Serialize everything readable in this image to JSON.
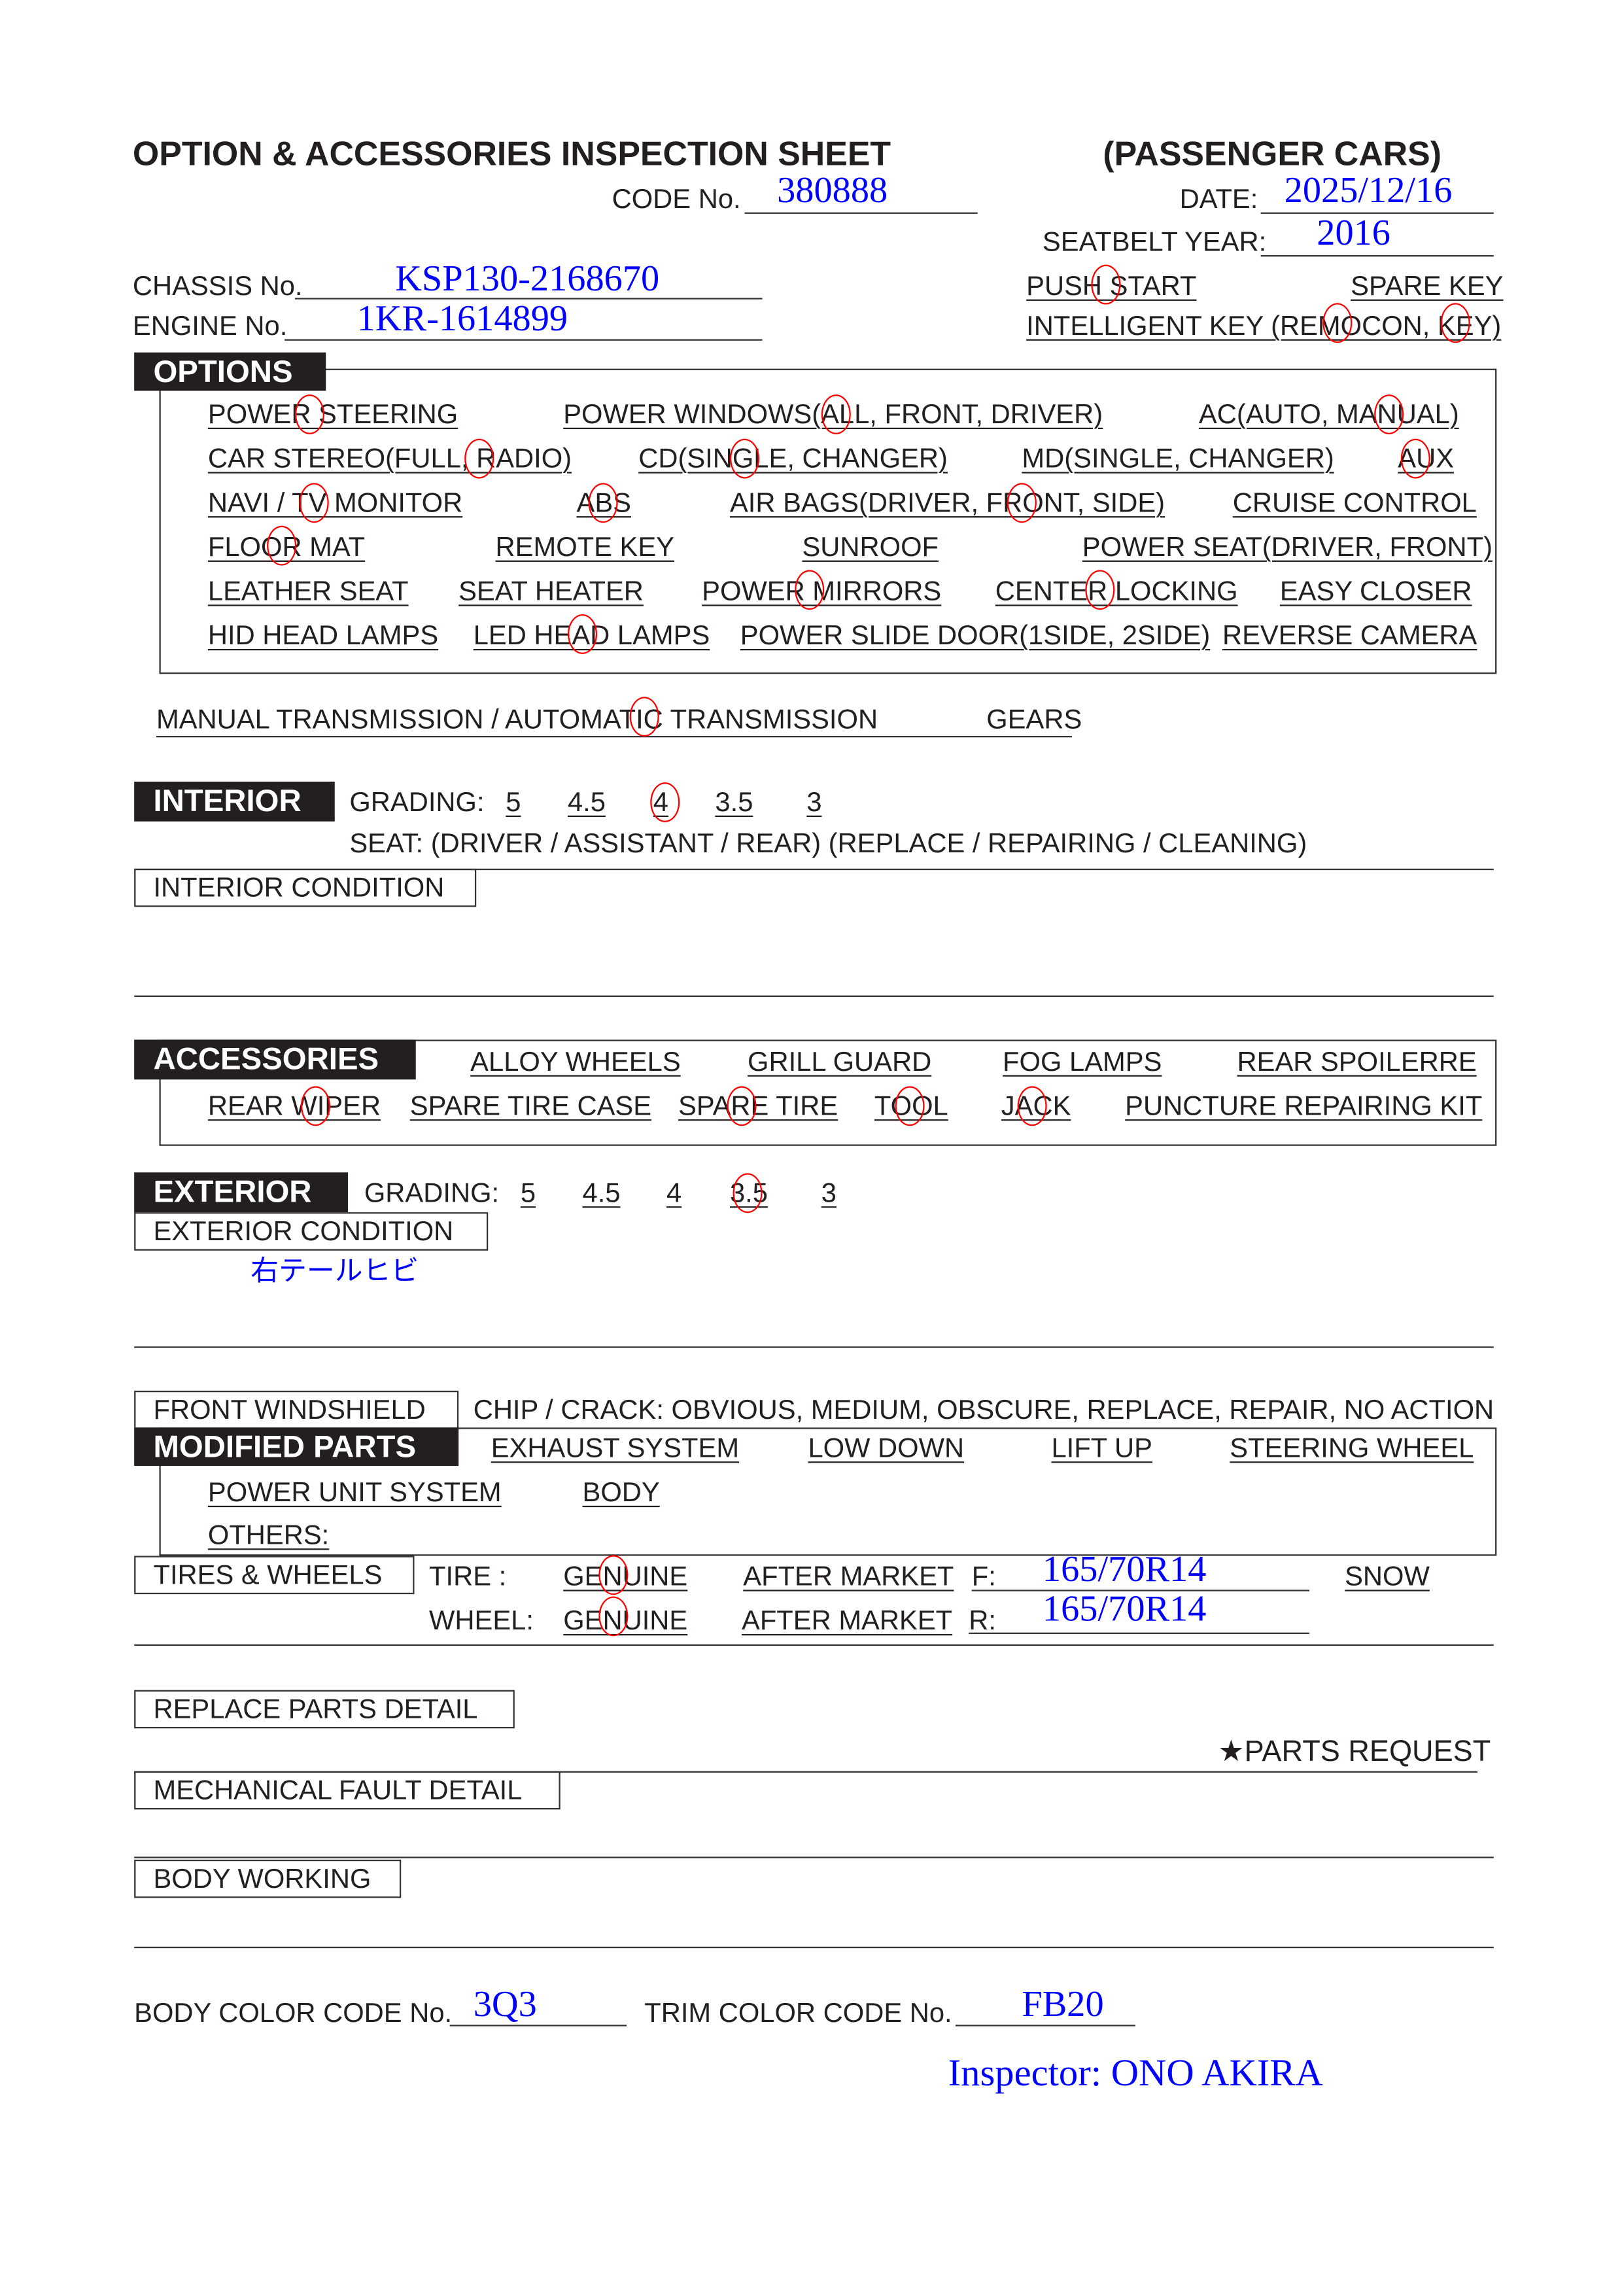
{
  "header": {
    "title": "OPTION & ACCESSORIES INSPECTION SHEET",
    "category": "(PASSENGER CARS)",
    "code_label": "CODE No.",
    "code_value": "380888",
    "date_label": "DATE:",
    "date_value": "2025/12/16",
    "seatbelt_label": "SEATBELT YEAR:",
    "seatbelt_value": "2016",
    "chassis_label": "CHASSIS No.",
    "chassis_value": "KSP130-2168670",
    "engine_label": "ENGINE No.",
    "engine_value": "1KR-1614899",
    "push_start": "PUSH START",
    "spare_key": "SPARE KEY",
    "intelligent_key": "INTELLIGENT KEY (REMOCON, KEY)"
  },
  "options": {
    "title": "OPTIONS",
    "items": [
      "POWER STEERING",
      "POWER WINDOWS(ALL, FRONT, DRIVER)",
      "AC(AUTO, MANUAL)",
      "CAR STEREO(FULL, RADIO)",
      "CD(SINGLE, CHANGER)",
      "MD(SINGLE, CHANGER)",
      "AUX",
      "NAVI / TV MONITOR",
      "ABS",
      "AIR BAGS(DRIVER, FRONT, SIDE)",
      "CRUISE CONTROL",
      "FLOOR MAT",
      "REMOTE KEY",
      "SUNROOF",
      "POWER SEAT(DRIVER, FRONT)",
      "LEATHER SEAT",
      "SEAT HEATER",
      "POWER MIRRORS",
      "CENTER LOCKING",
      "EASY CLOSER",
      "HID HEAD LAMPS",
      "LED HEAD LAMPS",
      "POWER SLIDE DOOR(1SIDE,  2SIDE)",
      "REVERSE CAMERA"
    ],
    "circled": [
      "PUSH START",
      "REMOCON",
      "KEY",
      "POWER STEERING",
      "ALL",
      "MANUAL",
      "RADIO",
      "SINGLE",
      "AUX",
      "TV MONITOR",
      "ABS",
      "FRONT",
      "FLOOR MAT",
      "POWER MIRRORS",
      "CENTER LOCKING",
      "LED HEAD LAMPS"
    ]
  },
  "transmission": {
    "label": "MANUAL TRANSMISSION / AUTOMATIC TRANSMISSION",
    "gears": "GEARS",
    "circled": "AUTOMATIC TRANSMISSION"
  },
  "interior": {
    "title": "INTERIOR",
    "grading_label": "GRADING:",
    "grades": [
      "5",
      "4.5",
      "4",
      "3.5",
      "3"
    ],
    "selected_grade": "4",
    "seat_line": "SEAT:  (DRIVER / ASSISTANT / REAR)   (REPLACE / REPAIRING / CLEANING)",
    "condition_label": "INTERIOR CONDITION"
  },
  "accessories": {
    "title": "ACCESSORIES",
    "items": [
      "ALLOY WHEELS",
      "GRILL GUARD",
      "FOG LAMPS",
      "REAR SPOILERRE",
      "REAR WIPER",
      "SPARE TIRE CASE",
      "SPARE TIRE",
      "TOOL",
      "JACK",
      "PUNCTURE REPAIRING KIT"
    ],
    "circled": [
      "REAR WIPER",
      "SPARE TIRE",
      "TOOL",
      "JACK"
    ]
  },
  "exterior": {
    "title": "EXTERIOR",
    "grading_label": "GRADING:",
    "grades": [
      "5",
      "4.5",
      "4",
      "3.5",
      "3"
    ],
    "selected_grade": "3.5",
    "condition_label": "EXTERIOR CONDITION",
    "condition_note": "右テールヒビ"
  },
  "windshield": {
    "label": "FRONT WINDSHIELD",
    "options": "CHIP / CRACK:  OBVIOUS,  MEDIUM,  OBSCURE,  REPLACE,  REPAIR,  NO ACTION"
  },
  "modified": {
    "title": "MODIFIED PARTS",
    "items": [
      "EXHAUST SYSTEM",
      "LOW DOWN",
      "LIFT UP",
      "STEERING WHEEL",
      "POWER UNIT SYSTEM",
      "BODY",
      "OTHERS:"
    ]
  },
  "tires": {
    "title": "TIRES & WHEELS",
    "tire_label": "TIRE :",
    "wheel_label": "WHEEL:",
    "genuine": "GENUINE",
    "after_market": "AFTER MARKET",
    "front_label": "F:",
    "front_value": "165/70R14",
    "rear_label": "R:",
    "rear_value": "165/70R14",
    "snow": "SNOW",
    "tire_selected": "GENUINE",
    "wheel_selected": "GENUINE"
  },
  "details": {
    "replace_parts": "REPLACE PARTS DETAIL",
    "parts_request": "★PARTS REQUEST",
    "mechanical_fault": "MECHANICAL FAULT DETAIL",
    "body_working": "BODY WORKING"
  },
  "footer": {
    "body_color_label": "BODY COLOR CODE No.",
    "body_color_value": "3Q3",
    "trim_color_label": "TRIM COLOR CODE No.",
    "trim_color_value": "FB20",
    "inspector_label": "Inspector:",
    "inspector_name": "ONO AKIRA"
  },
  "colors": {
    "ink": "#231f20",
    "handwriting": "#0000ff",
    "circle_mark": "#ff0000"
  }
}
